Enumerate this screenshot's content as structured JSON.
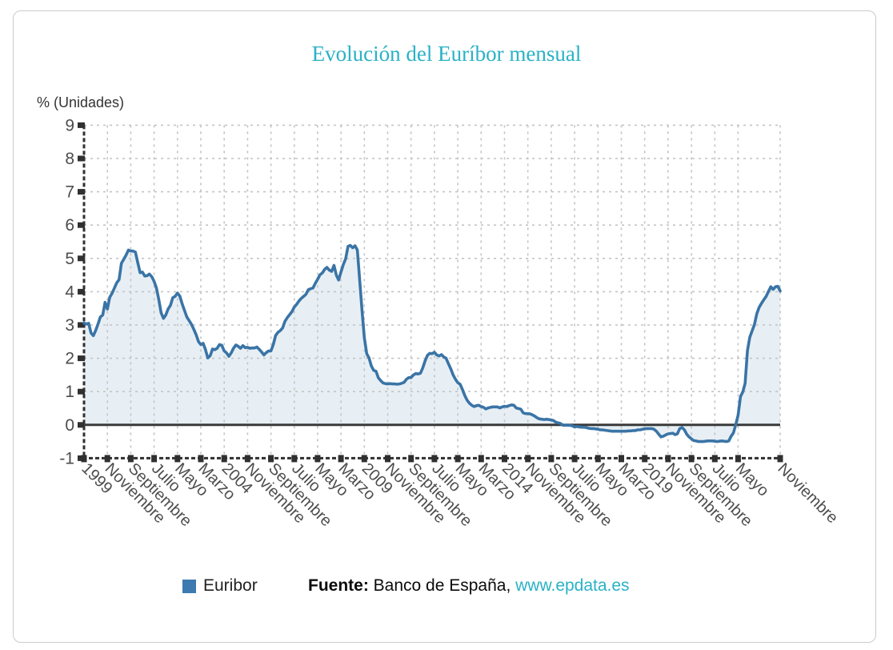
{
  "title": "Evolución del Euríbor mensual",
  "axis_unit_label": "% (Unidades)",
  "legend": {
    "label": "Euribor",
    "color": "#3d7ab0"
  },
  "source": {
    "prefix": "Fuente:",
    "text": " Banco de España, ",
    "link": "www.epdata.es"
  },
  "colors": {
    "accent": "#29b2c6",
    "line": "#3a74a6",
    "fill": "rgba(61,122,176,0.12)",
    "grid": "#c4c4c4",
    "axis": "#303030",
    "zero_line": "#3a3a3a",
    "tick_text": "#4d4d4d",
    "card_border": "#c9cbcd"
  },
  "chart_data": {
    "type": "area",
    "title": "Evolución del Euríbor mensual",
    "ylabel": "% (Unidades)",
    "ylim": [
      -1,
      9
    ],
    "grid": true,
    "legend_position": "bottom",
    "x_start": "1999-01",
    "x_end": "2023-11",
    "x_frequency": "monthly",
    "y_ticks": [
      -1,
      0,
      1,
      2,
      3,
      4,
      5,
      6,
      7,
      8,
      9
    ],
    "x_tick_month_indices": [
      0,
      10,
      20,
      30,
      40,
      50,
      60,
      70,
      80,
      90,
      100,
      110,
      120,
      130,
      140,
      150,
      160,
      170,
      180,
      190,
      200,
      210,
      220,
      230,
      240,
      250,
      260,
      270,
      280,
      298
    ],
    "x_tick_labels": [
      "1999",
      "Noviembre",
      "Septiembre",
      "Julio",
      "Mayo",
      "Marzo",
      "2004",
      "Noviembre",
      "Septiembre",
      "Julio",
      "Mayo",
      "Marzo",
      "2009",
      "Noviembre",
      "Septiembre",
      "Julio",
      "Mayo",
      "Marzo",
      "2014",
      "Noviembre",
      "Septiembre",
      "Julio",
      "Mayo",
      "Marzo",
      "2019",
      "Noviembre",
      "Septiembre",
      "Julio",
      "Mayo",
      "Noviembre"
    ],
    "series": [
      {
        "name": "Euribor",
        "values": [
          3.06,
          3.03,
          3.05,
          2.76,
          2.68,
          2.84,
          3.03,
          3.24,
          3.3,
          3.68,
          3.48,
          3.83,
          3.95,
          4.11,
          4.27,
          4.36,
          4.85,
          4.97,
          5.1,
          5.25,
          5.22,
          5.22,
          5.19,
          4.88,
          4.57,
          4.59,
          4.47,
          4.48,
          4.53,
          4.45,
          4.31,
          4.11,
          3.77,
          3.37,
          3.2,
          3.3,
          3.48,
          3.59,
          3.82,
          3.86,
          3.96,
          3.87,
          3.64,
          3.44,
          3.24,
          3.13,
          3.02,
          2.87,
          2.71,
          2.5,
          2.41,
          2.45,
          2.26,
          2.01,
          2.08,
          2.28,
          2.26,
          2.3,
          2.41,
          2.39,
          2.22,
          2.16,
          2.06,
          2.16,
          2.3,
          2.4,
          2.36,
          2.3,
          2.38,
          2.32,
          2.33,
          2.3,
          2.31,
          2.31,
          2.34,
          2.27,
          2.19,
          2.1,
          2.17,
          2.22,
          2.22,
          2.41,
          2.68,
          2.78,
          2.83,
          2.91,
          3.11,
          3.22,
          3.31,
          3.4,
          3.54,
          3.62,
          3.72,
          3.8,
          3.86,
          3.92,
          4.06,
          4.09,
          4.11,
          4.25,
          4.37,
          4.51,
          4.56,
          4.67,
          4.73,
          4.65,
          4.61,
          4.79,
          4.5,
          4.35,
          4.59,
          4.82,
          4.99,
          5.36,
          5.39,
          5.32,
          5.38,
          5.25,
          4.35,
          3.45,
          2.62,
          2.14,
          2.01,
          1.77,
          1.64,
          1.61,
          1.41,
          1.33,
          1.26,
          1.24,
          1.23,
          1.24,
          1.23,
          1.23,
          1.22,
          1.23,
          1.25,
          1.28,
          1.37,
          1.42,
          1.42,
          1.5,
          1.54,
          1.53,
          1.55,
          1.71,
          1.92,
          2.09,
          2.15,
          2.14,
          2.18,
          2.1,
          2.07,
          2.11,
          2.04,
          2.0,
          1.84,
          1.68,
          1.5,
          1.37,
          1.27,
          1.22,
          1.06,
          0.88,
          0.74,
          0.65,
          0.59,
          0.55,
          0.58,
          0.59,
          0.55,
          0.53,
          0.48,
          0.51,
          0.53,
          0.54,
          0.54,
          0.54,
          0.51,
          0.54,
          0.56,
          0.55,
          0.58,
          0.6,
          0.59,
          0.51,
          0.49,
          0.47,
          0.36,
          0.34,
          0.34,
          0.33,
          0.3,
          0.26,
          0.21,
          0.18,
          0.17,
          0.16,
          0.17,
          0.16,
          0.15,
          0.13,
          0.08,
          0.06,
          0.04,
          -0.01,
          -0.01,
          -0.01,
          -0.01,
          -0.03,
          -0.06,
          -0.05,
          -0.06,
          -0.07,
          -0.07,
          -0.08,
          -0.1,
          -0.11,
          -0.11,
          -0.12,
          -0.13,
          -0.15,
          -0.15,
          -0.16,
          -0.17,
          -0.18,
          -0.19,
          -0.19,
          -0.19,
          -0.19,
          -0.19,
          -0.19,
          -0.19,
          -0.18,
          -0.18,
          -0.17,
          -0.17,
          -0.15,
          -0.15,
          -0.13,
          -0.12,
          -0.11,
          -0.11,
          -0.11,
          -0.13,
          -0.19,
          -0.28,
          -0.36,
          -0.34,
          -0.3,
          -0.27,
          -0.26,
          -0.25,
          -0.29,
          -0.27,
          -0.11,
          -0.08,
          -0.15,
          -0.28,
          -0.36,
          -0.42,
          -0.47,
          -0.48,
          -0.5,
          -0.5,
          -0.5,
          -0.49,
          -0.48,
          -0.48,
          -0.48,
          -0.49,
          -0.5,
          -0.49,
          -0.48,
          -0.49,
          -0.5,
          -0.48,
          -0.34,
          -0.24,
          0.01,
          0.29,
          0.85,
          0.99,
          1.25,
          2.23,
          2.63,
          2.83,
          3.02,
          3.34,
          3.53,
          3.65,
          3.76,
          3.86,
          4.01,
          4.15,
          4.07,
          4.15,
          4.16,
          4.02
        ]
      }
    ]
  }
}
